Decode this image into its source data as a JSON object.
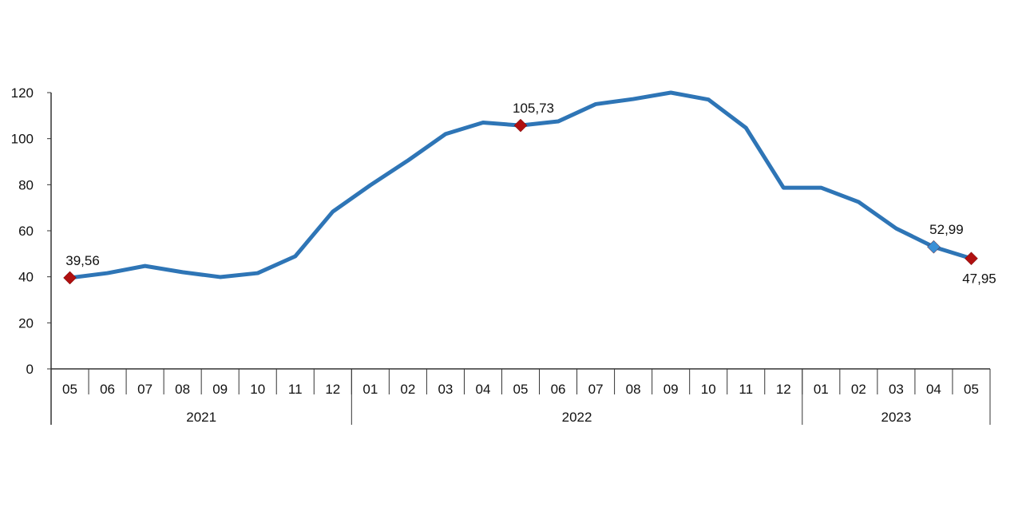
{
  "chart_data": {
    "type": "line",
    "title": "",
    "xlabel": "",
    "ylabel": "",
    "ylim": [
      0,
      120
    ],
    "yticks": [
      0,
      20,
      40,
      60,
      80,
      100,
      120
    ],
    "grid": false,
    "legend": "none",
    "categories": [
      "05",
      "06",
      "07",
      "08",
      "09",
      "10",
      "11",
      "12",
      "01",
      "02",
      "03",
      "04",
      "05",
      "06",
      "07",
      "08",
      "09",
      "10",
      "11",
      "12",
      "01",
      "02",
      "03",
      "04",
      "05"
    ],
    "year_groups": [
      {
        "label": "2021",
        "count": 8
      },
      {
        "label": "2022",
        "count": 12
      },
      {
        "label": "2023",
        "count": 5
      }
    ],
    "series": [
      {
        "color": "#2e75b6",
        "values": [
          39.56,
          41.6,
          44.7,
          42.0,
          39.9,
          41.6,
          48.9,
          68.3,
          79.8,
          90.5,
          102.0,
          107.0,
          105.73,
          107.5,
          115.0,
          117.2,
          120.0,
          117.0,
          104.7,
          78.7,
          78.7,
          72.5,
          61.0,
          52.99,
          47.95
        ]
      }
    ],
    "markers": [
      {
        "index": 0,
        "label": "39,56",
        "color": "#b01010",
        "label_position": "above"
      },
      {
        "index": 12,
        "label": "105,73",
        "color": "#b01010",
        "label_position": "above"
      },
      {
        "index": 23,
        "label": "52,99",
        "color": "#3a8fd6",
        "label_position": "above"
      },
      {
        "index": 24,
        "label": "47,95",
        "color": "#b01010",
        "label_position": "below"
      }
    ]
  }
}
